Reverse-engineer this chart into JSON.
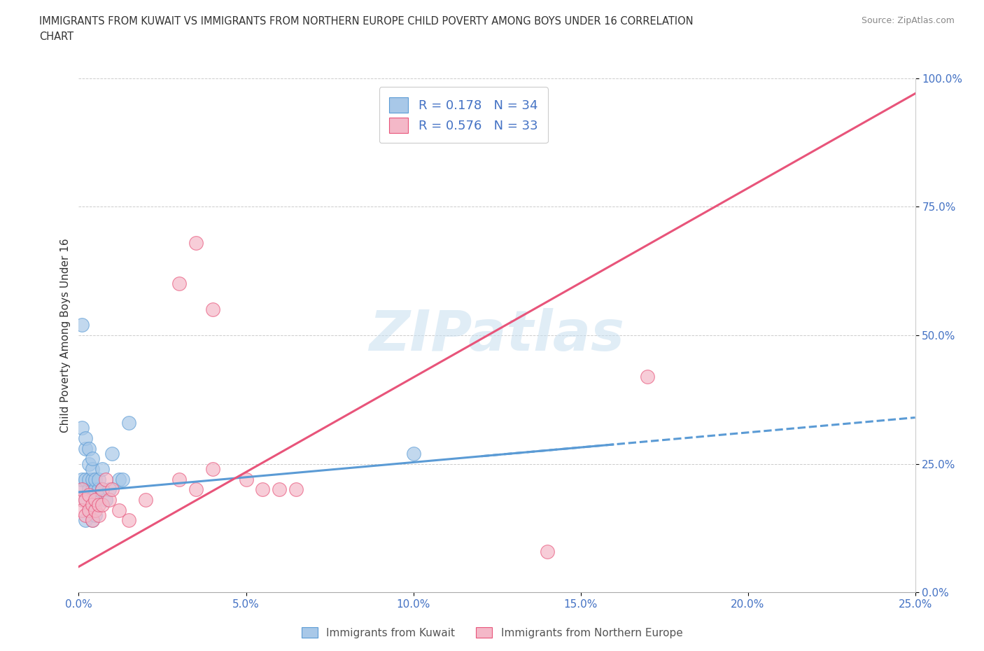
{
  "title_line1": "IMMIGRANTS FROM KUWAIT VS IMMIGRANTS FROM NORTHERN EUROPE CHILD POVERTY AMONG BOYS UNDER 16 CORRELATION",
  "title_line2": "CHART",
  "source": "Source: ZipAtlas.com",
  "ylabel": "Child Poverty Among Boys Under 16",
  "xlim": [
    0.0,
    0.25
  ],
  "ylim": [
    0.0,
    1.0
  ],
  "xticks": [
    0.0,
    0.05,
    0.1,
    0.15,
    0.2,
    0.25
  ],
  "yticks": [
    0.0,
    0.25,
    0.5,
    0.75,
    1.0
  ],
  "xticklabels": [
    "0.0%",
    "5.0%",
    "10.0%",
    "15.0%",
    "20.0%",
    "25.0%"
  ],
  "yticklabels": [
    "0.0%",
    "25.0%",
    "50.0%",
    "75.0%",
    "100.0%"
  ],
  "watermark": "ZIPatlas",
  "kuwait_color": "#a8c8e8",
  "kuwait_color_line": "#5b9bd5",
  "northern_europe_color": "#f4b8c8",
  "northern_europe_color_line": "#e8547a",
  "kuwait_R": 0.178,
  "kuwait_N": 34,
  "northern_europe_R": 0.576,
  "northern_europe_N": 33,
  "kuwait_x": [
    0.001,
    0.001,
    0.001,
    0.002,
    0.002,
    0.002,
    0.002,
    0.003,
    0.003,
    0.003,
    0.003,
    0.004,
    0.004,
    0.004,
    0.004,
    0.005,
    0.005,
    0.005,
    0.006,
    0.006,
    0.007,
    0.007,
    0.008,
    0.009,
    0.01,
    0.012,
    0.013,
    0.015,
    0.002,
    0.003,
    0.004,
    0.001,
    0.005,
    0.1
  ],
  "kuwait_y": [
    0.2,
    0.22,
    0.32,
    0.18,
    0.22,
    0.28,
    0.3,
    0.2,
    0.22,
    0.25,
    0.28,
    0.2,
    0.22,
    0.24,
    0.26,
    0.18,
    0.2,
    0.22,
    0.2,
    0.22,
    0.2,
    0.24,
    0.18,
    0.2,
    0.27,
    0.22,
    0.22,
    0.33,
    0.14,
    0.16,
    0.14,
    0.52,
    0.15,
    0.27
  ],
  "ne_x": [
    0.001,
    0.001,
    0.001,
    0.002,
    0.002,
    0.003,
    0.003,
    0.004,
    0.004,
    0.005,
    0.005,
    0.006,
    0.006,
    0.007,
    0.007,
    0.008,
    0.009,
    0.01,
    0.012,
    0.015,
    0.02,
    0.03,
    0.035,
    0.04,
    0.05,
    0.055,
    0.06,
    0.065,
    0.03,
    0.04,
    0.17,
    0.035,
    0.14
  ],
  "ne_y": [
    0.18,
    0.2,
    0.16,
    0.15,
    0.18,
    0.16,
    0.19,
    0.14,
    0.17,
    0.16,
    0.18,
    0.15,
    0.17,
    0.17,
    0.2,
    0.22,
    0.18,
    0.2,
    0.16,
    0.14,
    0.18,
    0.22,
    0.2,
    0.24,
    0.22,
    0.2,
    0.2,
    0.2,
    0.6,
    0.55,
    0.42,
    0.68,
    0.08
  ],
  "ne_trend_m": 3.68,
  "ne_trend_b": 0.05,
  "kuwait_trend_m": 0.58,
  "kuwait_trend_b": 0.195,
  "background_color": "#ffffff",
  "grid_color": "#cccccc"
}
